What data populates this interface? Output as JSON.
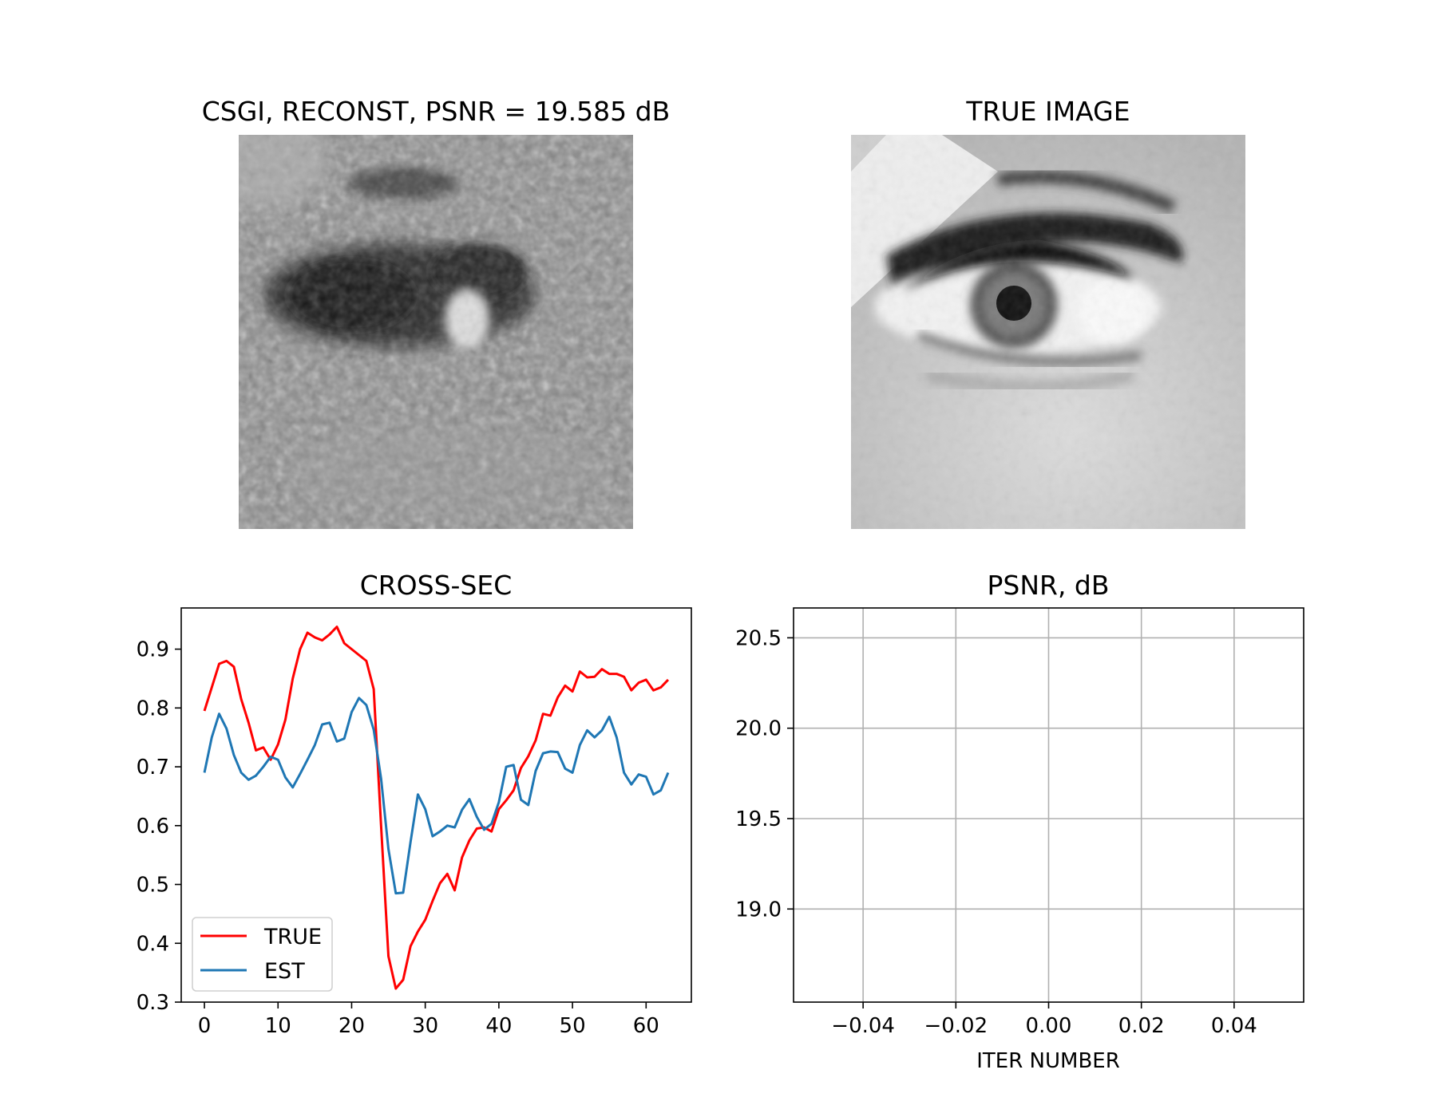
{
  "panels": {
    "reconstruction": {
      "title": "CSGI, RECONST, PSNR = 19.585 dB"
    },
    "true_image": {
      "title": "TRUE IMAGE"
    }
  },
  "chart_data": [
    {
      "type": "line",
      "title": "CROSS-SEC",
      "xlabel": "",
      "ylabel": "",
      "xlim": [
        -3.15,
        66.15
      ],
      "ylim": [
        0.3,
        0.97
      ],
      "xticks": [
        "0",
        "10",
        "20",
        "30",
        "40",
        "50",
        "60"
      ],
      "yticks": [
        "0.3",
        "0.4",
        "0.5",
        "0.6",
        "0.7",
        "0.8",
        "0.9"
      ],
      "grid": false,
      "legend": "lower-left",
      "colors": {
        "TRUE": "#ff0000",
        "EST": "#1f77b4"
      },
      "series": [
        {
          "name": "TRUE",
          "x": [
            0,
            1,
            2,
            3,
            4,
            5,
            6,
            7,
            8,
            9,
            10,
            11,
            12,
            13,
            14,
            15,
            16,
            17,
            18,
            19,
            20,
            21,
            22,
            23,
            24,
            25,
            26,
            27,
            28,
            29,
            30,
            31,
            32,
            33,
            34,
            35,
            36,
            37,
            38,
            39,
            40,
            41,
            42,
            43,
            44,
            45,
            46,
            47,
            48,
            49,
            50,
            51,
            52,
            53,
            54,
            55,
            56,
            57,
            58,
            59,
            60,
            61,
            62,
            63
          ],
          "values": [
            0.795,
            0.835,
            0.875,
            0.88,
            0.87,
            0.815,
            0.775,
            0.728,
            0.733,
            0.712,
            0.738,
            0.78,
            0.85,
            0.9,
            0.928,
            0.92,
            0.915,
            0.925,
            0.938,
            0.91,
            0.9,
            0.89,
            0.88,
            0.832,
            0.6,
            0.378,
            0.323,
            0.338,
            0.395,
            0.42,
            0.44,
            0.472,
            0.502,
            0.518,
            0.49,
            0.546,
            0.575,
            0.595,
            0.597,
            0.59,
            0.628,
            0.643,
            0.66,
            0.698,
            0.718,
            0.745,
            0.79,
            0.787,
            0.818,
            0.838,
            0.828,
            0.862,
            0.852,
            0.853,
            0.866,
            0.858,
            0.858,
            0.853,
            0.83,
            0.843,
            0.848,
            0.83,
            0.835,
            0.848
          ]
        },
        {
          "name": "EST",
          "x": [
            0,
            1,
            2,
            3,
            4,
            5,
            6,
            7,
            8,
            9,
            10,
            11,
            12,
            13,
            14,
            15,
            16,
            17,
            18,
            19,
            20,
            21,
            22,
            23,
            24,
            25,
            26,
            27,
            28,
            29,
            30,
            31,
            32,
            33,
            34,
            35,
            36,
            37,
            38,
            39,
            40,
            41,
            42,
            43,
            44,
            45,
            46,
            47,
            48,
            49,
            50,
            51,
            52,
            53,
            54,
            55,
            56,
            57,
            58,
            59,
            60,
            61,
            62,
            63
          ],
          "values": [
            0.69,
            0.75,
            0.79,
            0.765,
            0.72,
            0.69,
            0.678,
            0.685,
            0.7,
            0.717,
            0.712,
            0.682,
            0.665,
            0.688,
            0.712,
            0.737,
            0.772,
            0.775,
            0.743,
            0.748,
            0.793,
            0.817,
            0.805,
            0.763,
            0.68,
            0.56,
            0.485,
            0.486,
            0.572,
            0.653,
            0.628,
            0.582,
            0.59,
            0.6,
            0.597,
            0.627,
            0.645,
            0.615,
            0.593,
            0.603,
            0.64,
            0.7,
            0.703,
            0.644,
            0.635,
            0.693,
            0.723,
            0.726,
            0.725,
            0.697,
            0.69,
            0.737,
            0.762,
            0.75,
            0.762,
            0.785,
            0.75,
            0.69,
            0.67,
            0.687,
            0.683,
            0.653,
            0.66,
            0.69
          ]
        }
      ]
    },
    {
      "type": "line",
      "title": "PSNR, dB",
      "xlabel": "ITER NUMBER",
      "ylabel": "",
      "xlim": [
        -0.055,
        0.055
      ],
      "ylim": [
        18.485,
        20.665
      ],
      "xticks": [
        "−0.04",
        "−0.02",
        "0.00",
        "0.02",
        "0.04"
      ],
      "yticks": [
        "19.0",
        "19.5",
        "20.0",
        "20.5"
      ],
      "grid": true,
      "series": []
    }
  ]
}
